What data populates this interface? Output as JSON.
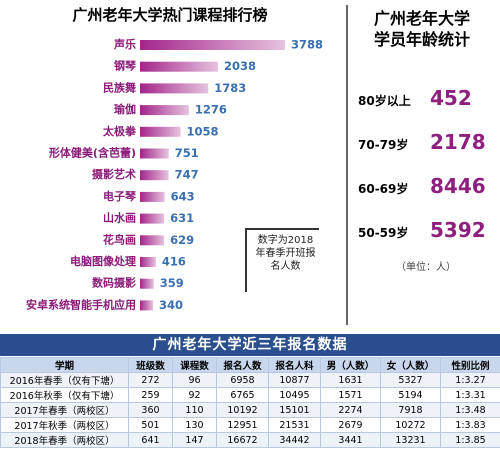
{
  "chart_data": {
    "type": "bar",
    "orientation": "horizontal",
    "title": "广州老年大学热门课程排行榜",
    "categories": [
      "声乐",
      "钢琴",
      "民族舞",
      "瑜伽",
      "太极拳",
      "形体健美(含芭蕾)",
      "摄影艺术",
      "电子琴",
      "山水画",
      "花鸟画",
      "电脑图像处理",
      "数码摄影",
      "安卓系统智能手机应用"
    ],
    "values": [
      3788,
      2038,
      1783,
      1276,
      1058,
      751,
      747,
      643,
      631,
      629,
      416,
      359,
      340
    ],
    "color": "#a3258a"
  },
  "note": "数字为2018年春季开班报名人数",
  "age_stats": {
    "title": "广州老年大学学员年龄统计",
    "rows": [
      {
        "label": "80岁以上",
        "value": 452
      },
      {
        "label": "70-79岁",
        "value": 2178
      },
      {
        "label": "60-69岁",
        "value": 8446
      },
      {
        "label": "50-59岁",
        "value": 5392
      }
    ],
    "unit": "（单位：人）"
  },
  "table": {
    "title": "广州老年大学近三年报名数据",
    "header": [
      "学期",
      "班级数",
      "课程数",
      "报名人数",
      "报名人科",
      "男（人数）",
      "女（人数）",
      "性别比例"
    ],
    "rows": [
      [
        "2016年春季（仅有下塘）",
        272,
        96,
        6958,
        10877,
        1631,
        5327,
        "1:3.27"
      ],
      [
        "2016年秋季（仅有下塘）",
        259,
        92,
        6765,
        10495,
        1571,
        5194,
        "1:3.31"
      ],
      [
        "2017年春季（两校区）",
        360,
        110,
        10192,
        15101,
        2274,
        7918,
        "1:3.48"
      ],
      [
        "2017年秋季（两校区）",
        501,
        130,
        12951,
        21531,
        2679,
        10272,
        "1:3.83"
      ],
      [
        "2018年春季（两校区）",
        641,
        147,
        16672,
        34442,
        3441,
        13231,
        "1:3.85"
      ]
    ]
  }
}
